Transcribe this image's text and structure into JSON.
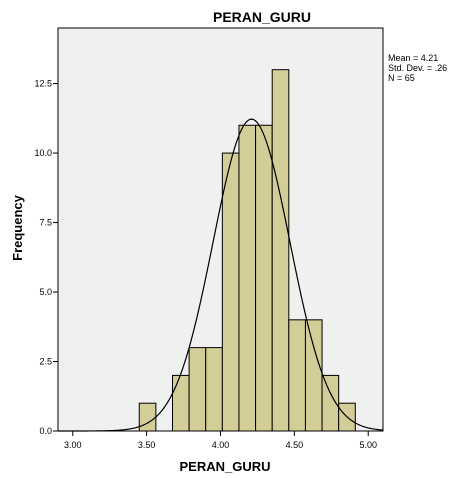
{
  "chart_data": {
    "type": "bar",
    "title": "PERAN_GURU",
    "xlabel": "PERAN_GURU",
    "ylabel": "Frequency",
    "xlim": [
      2.9,
      5.1
    ],
    "ylim": [
      0,
      14.5
    ],
    "x_ticks": [
      "3.00",
      "3.50",
      "4.00",
      "4.50",
      "5.00"
    ],
    "x_tick_values": [
      3.0,
      3.5,
      4.0,
      4.5,
      5.0
    ],
    "y_ticks": [
      "0.0",
      "2.5",
      "5.0",
      "7.5",
      "10.0",
      "12.5"
    ],
    "y_tick_values": [
      0,
      2.5,
      5.0,
      7.5,
      10.0,
      12.5
    ],
    "bins": [
      {
        "x0": 3.45,
        "x1": 3.5625,
        "value": 1
      },
      {
        "x0": 3.5625,
        "x1": 3.675,
        "value": 0
      },
      {
        "x0": 3.675,
        "x1": 3.7875,
        "value": 2
      },
      {
        "x0": 3.7875,
        "x1": 3.9,
        "value": 3
      },
      {
        "x0": 3.9,
        "x1": 4.0125,
        "value": 3
      },
      {
        "x0": 4.0125,
        "x1": 4.125,
        "value": 10
      },
      {
        "x0": 4.125,
        "x1": 4.2375,
        "value": 11
      },
      {
        "x0": 4.2375,
        "x1": 4.35,
        "value": 11
      },
      {
        "x0": 4.35,
        "x1": 4.4625,
        "value": 13
      },
      {
        "x0": 4.4625,
        "x1": 4.575,
        "value": 4
      },
      {
        "x0": 4.575,
        "x1": 4.6875,
        "value": 4
      },
      {
        "x0": 4.6875,
        "x1": 4.8,
        "value": 2
      },
      {
        "x0": 4.8,
        "x1": 4.9125,
        "value": 1
      }
    ],
    "normal_curve": {
      "mean": 4.21,
      "std": 0.26,
      "n": 65
    },
    "stats": {
      "mean": "Mean = 4.21",
      "std": "Std. Dev. = .26",
      "n": "N = 65"
    },
    "grid": false,
    "colors": {
      "plot_bg": "#f0f0f0",
      "bar_fill": "#d3ce97",
      "bar_stroke": "#000000",
      "curve": "#000000"
    }
  }
}
